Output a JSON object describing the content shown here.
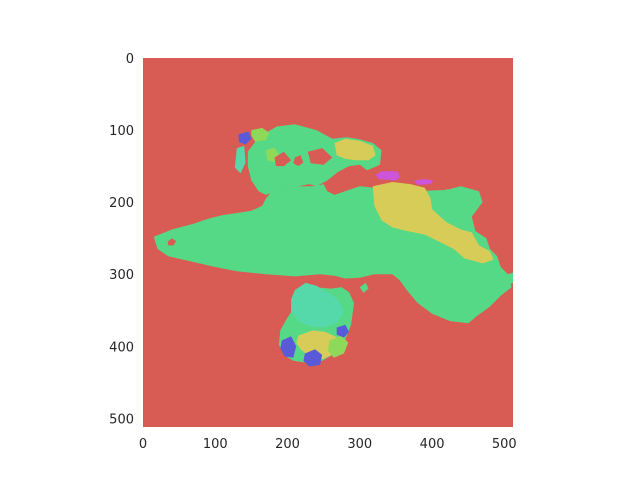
{
  "chart_data": {
    "type": "heatmap",
    "title": "",
    "xlabel": "",
    "ylabel": "",
    "xlim": [
      0,
      512
    ],
    "ylim": [
      512,
      0
    ],
    "x_ticks": [
      0,
      100,
      200,
      300,
      400,
      500
    ],
    "y_ticks": [
      0,
      100,
      200,
      300,
      400,
      500
    ],
    "x_tick_labels": [
      "0",
      "100",
      "200",
      "300",
      "400",
      "500"
    ],
    "y_tick_labels": [
      "0",
      "100",
      "200",
      "300",
      "400",
      "500"
    ],
    "grid": false,
    "colors": {
      "background": "#d95c54",
      "green": "#55d986",
      "yellow": "#d8cc58",
      "lime": "#8ed95a",
      "teal": "#55d9aa",
      "blue": "#5a5ad9",
      "magenta": "#cc55d9",
      "tick_text": "#262626"
    },
    "regions": [
      {
        "name": "main-landmass",
        "color": "green",
        "points": [
          [
            15,
            248
          ],
          [
            40,
            238
          ],
          [
            70,
            230
          ],
          [
            90,
            223
          ],
          [
            110,
            218
          ],
          [
            130,
            215
          ],
          [
            150,
            212
          ],
          [
            165,
            205
          ],
          [
            170,
            195
          ],
          [
            178,
            185
          ],
          [
            195,
            180
          ],
          [
            210,
            178
          ],
          [
            235,
            178
          ],
          [
            250,
            175
          ],
          [
            255,
            185
          ],
          [
            265,
            190
          ],
          [
            285,
            183
          ],
          [
            300,
            178
          ],
          [
            320,
            180
          ],
          [
            340,
            185
          ],
          [
            365,
            188
          ],
          [
            395,
            184
          ],
          [
            420,
            183
          ],
          [
            440,
            178
          ],
          [
            465,
            185
          ],
          [
            470,
            200
          ],
          [
            455,
            220
          ],
          [
            460,
            240
          ],
          [
            475,
            250
          ],
          [
            480,
            265
          ],
          [
            490,
            275
          ],
          [
            495,
            290
          ],
          [
            505,
            300
          ],
          [
            510,
            318
          ],
          [
            495,
            330
          ],
          [
            480,
            345
          ],
          [
            462,
            358
          ],
          [
            450,
            368
          ],
          [
            425,
            365
          ],
          [
            400,
            355
          ],
          [
            380,
            340
          ],
          [
            365,
            322
          ],
          [
            355,
            308
          ],
          [
            345,
            300
          ],
          [
            320,
            300
          ],
          [
            300,
            305
          ],
          [
            280,
            306
          ],
          [
            265,
            302
          ],
          [
            245,
            300
          ],
          [
            210,
            303
          ],
          [
            170,
            300
          ],
          [
            130,
            296
          ],
          [
            100,
            290
          ],
          [
            65,
            282
          ],
          [
            35,
            275
          ],
          [
            20,
            265
          ]
        ]
      },
      {
        "name": "upper-lobe",
        "color": "green",
        "points": [
          [
            145,
            130
          ],
          [
            160,
            110
          ],
          [
            185,
            95
          ],
          [
            210,
            92
          ],
          [
            240,
            100
          ],
          [
            262,
            112
          ],
          [
            282,
            110
          ],
          [
            300,
            113
          ],
          [
            318,
            118
          ],
          [
            330,
            128
          ],
          [
            328,
            148
          ],
          [
            310,
            156
          ],
          [
            300,
            148
          ],
          [
            285,
            150
          ],
          [
            270,
            158
          ],
          [
            255,
            170
          ],
          [
            240,
            178
          ],
          [
            230,
            175
          ],
          [
            215,
            178
          ],
          [
            195,
            180
          ],
          [
            180,
            186
          ],
          [
            170,
            190
          ],
          [
            160,
            185
          ],
          [
            150,
            170
          ],
          [
            145,
            150
          ]
        ]
      },
      {
        "name": "yellow-patch-east",
        "color": "yellow",
        "points": [
          [
            318,
            178
          ],
          [
            345,
            172
          ],
          [
            370,
            175
          ],
          [
            390,
            180
          ],
          [
            398,
            195
          ],
          [
            400,
            210
          ],
          [
            420,
            228
          ],
          [
            440,
            238
          ],
          [
            455,
            242
          ],
          [
            465,
            260
          ],
          [
            480,
            268
          ],
          [
            485,
            280
          ],
          [
            470,
            285
          ],
          [
            445,
            278
          ],
          [
            430,
            265
          ],
          [
            410,
            255
          ],
          [
            390,
            245
          ],
          [
            365,
            240
          ],
          [
            345,
            235
          ],
          [
            330,
            225
          ],
          [
            320,
            205
          ]
        ]
      },
      {
        "name": "yellow-patch-north",
        "color": "yellow",
        "points": [
          [
            265,
            118
          ],
          [
            280,
            112
          ],
          [
            300,
            115
          ],
          [
            318,
            122
          ],
          [
            322,
            135
          ],
          [
            312,
            142
          ],
          [
            295,
            142
          ],
          [
            280,
            140
          ],
          [
            268,
            135
          ]
        ]
      },
      {
        "name": "green-blob-east",
        "color": "green",
        "points": [
          [
            405,
            190
          ],
          [
            420,
            182
          ],
          [
            438,
            184
          ],
          [
            450,
            195
          ],
          [
            448,
            210
          ],
          [
            438,
            220
          ],
          [
            420,
            222
          ],
          [
            408,
            212
          ]
        ]
      },
      {
        "name": "magenta-strip-a",
        "color": "magenta",
        "points": [
          [
            322,
            162
          ],
          [
            330,
            157
          ],
          [
            352,
            157
          ],
          [
            356,
            165
          ],
          [
            350,
            170
          ],
          [
            326,
            168
          ]
        ]
      },
      {
        "name": "magenta-strip-b",
        "color": "magenta",
        "points": [
          [
            375,
            170
          ],
          [
            390,
            168
          ],
          [
            402,
            170
          ],
          [
            398,
            175
          ],
          [
            380,
            176
          ]
        ]
      },
      {
        "name": "lime-patch-north",
        "color": "lime",
        "points": [
          [
            150,
            100
          ],
          [
            165,
            97
          ],
          [
            175,
            104
          ],
          [
            170,
            114
          ],
          [
            155,
            116
          ],
          [
            150,
            108
          ]
        ]
      },
      {
        "name": "lime-patch-mid",
        "color": "lime",
        "points": [
          [
            170,
            128
          ],
          [
            182,
            124
          ],
          [
            188,
            134
          ],
          [
            184,
            145
          ],
          [
            172,
            142
          ]
        ]
      },
      {
        "name": "blue-patch-north",
        "color": "blue",
        "points": [
          [
            132,
            106
          ],
          [
            146,
            102
          ],
          [
            150,
            112
          ],
          [
            142,
            120
          ],
          [
            133,
            117
          ]
        ]
      },
      {
        "name": "teal-patch-north",
        "color": "teal",
        "points": [
          [
            130,
            125
          ],
          [
            140,
            122
          ],
          [
            142,
            145
          ],
          [
            135,
            160
          ],
          [
            127,
            152
          ]
        ]
      },
      {
        "name": "southern-lobe",
        "color": "green",
        "points": [
          [
            220,
            325
          ],
          [
            238,
            318
          ],
          [
            260,
            320
          ],
          [
            275,
            318
          ],
          [
            285,
            325
          ],
          [
            292,
            340
          ],
          [
            288,
            370
          ],
          [
            278,
            395
          ],
          [
            262,
            412
          ],
          [
            248,
            420
          ],
          [
            228,
            423
          ],
          [
            208,
            420
          ],
          [
            195,
            412
          ],
          [
            188,
            398
          ],
          [
            190,
            378
          ],
          [
            200,
            360
          ],
          [
            210,
            345
          ],
          [
            214,
            332
          ]
        ]
      },
      {
        "name": "southern-teal",
        "color": "teal",
        "points": [
          [
            210,
            322
          ],
          [
            225,
            312
          ],
          [
            240,
            316
          ],
          [
            255,
            325
          ],
          [
            270,
            335
          ],
          [
            278,
            352
          ],
          [
            268,
            368
          ],
          [
            250,
            374
          ],
          [
            230,
            372
          ],
          [
            215,
            365
          ],
          [
            205,
            352
          ],
          [
            205,
            335
          ]
        ]
      },
      {
        "name": "southern-yellow",
        "color": "yellow",
        "points": [
          [
            215,
            385
          ],
          [
            235,
            378
          ],
          [
            252,
            380
          ],
          [
            270,
            388
          ],
          [
            272,
            400
          ],
          [
            262,
            412
          ],
          [
            248,
            418
          ],
          [
            230,
            414
          ],
          [
            218,
            404
          ],
          [
            212,
            395
          ]
        ]
      },
      {
        "name": "southern-lime",
        "color": "lime",
        "points": [
          [
            258,
            392
          ],
          [
            275,
            385
          ],
          [
            284,
            395
          ],
          [
            278,
            410
          ],
          [
            264,
            416
          ],
          [
            256,
            406
          ]
        ]
      },
      {
        "name": "southern-blue-a",
        "color": "blue",
        "points": [
          [
            192,
            392
          ],
          [
            205,
            386
          ],
          [
            212,
            400
          ],
          [
            208,
            416
          ],
          [
            196,
            414
          ],
          [
            190,
            403
          ]
        ]
      },
      {
        "name": "southern-blue-b",
        "color": "blue",
        "points": [
          [
            224,
            410
          ],
          [
            238,
            404
          ],
          [
            248,
            412
          ],
          [
            245,
            426
          ],
          [
            230,
            428
          ],
          [
            222,
            420
          ]
        ]
      },
      {
        "name": "southern-blue-c",
        "color": "blue",
        "points": [
          [
            268,
            374
          ],
          [
            280,
            370
          ],
          [
            285,
            380
          ],
          [
            278,
            388
          ],
          [
            268,
            384
          ]
        ]
      },
      {
        "name": "dots-south",
        "color": "green",
        "points": [
          [
            300,
            318
          ],
          [
            308,
            312
          ],
          [
            312,
            320
          ],
          [
            305,
            326
          ]
        ]
      },
      {
        "name": "tip-east",
        "color": "green",
        "points": [
          [
            505,
            300
          ],
          [
            512,
            298
          ],
          [
            512,
            312
          ],
          [
            506,
            314
          ]
        ]
      },
      {
        "name": "red-hole-west",
        "color": "background",
        "points": [
          [
            34,
            255
          ],
          [
            40,
            250
          ],
          [
            46,
            254
          ],
          [
            42,
            260
          ],
          [
            35,
            260
          ]
        ]
      },
      {
        "name": "red-hole-north",
        "color": "background",
        "points": [
          [
            182,
            138
          ],
          [
            195,
            130
          ],
          [
            205,
            142
          ],
          [
            195,
            150
          ],
          [
            184,
            150
          ]
        ]
      },
      {
        "name": "red-hole-mid",
        "color": "background",
        "points": [
          [
            210,
            138
          ],
          [
            218,
            135
          ],
          [
            222,
            145
          ],
          [
            215,
            150
          ],
          [
            208,
            146
          ]
        ]
      },
      {
        "name": "red-hole-lobe",
        "color": "background",
        "points": [
          [
            228,
            130
          ],
          [
            248,
            125
          ],
          [
            262,
            138
          ],
          [
            250,
            148
          ],
          [
            232,
            146
          ]
        ]
      }
    ]
  }
}
